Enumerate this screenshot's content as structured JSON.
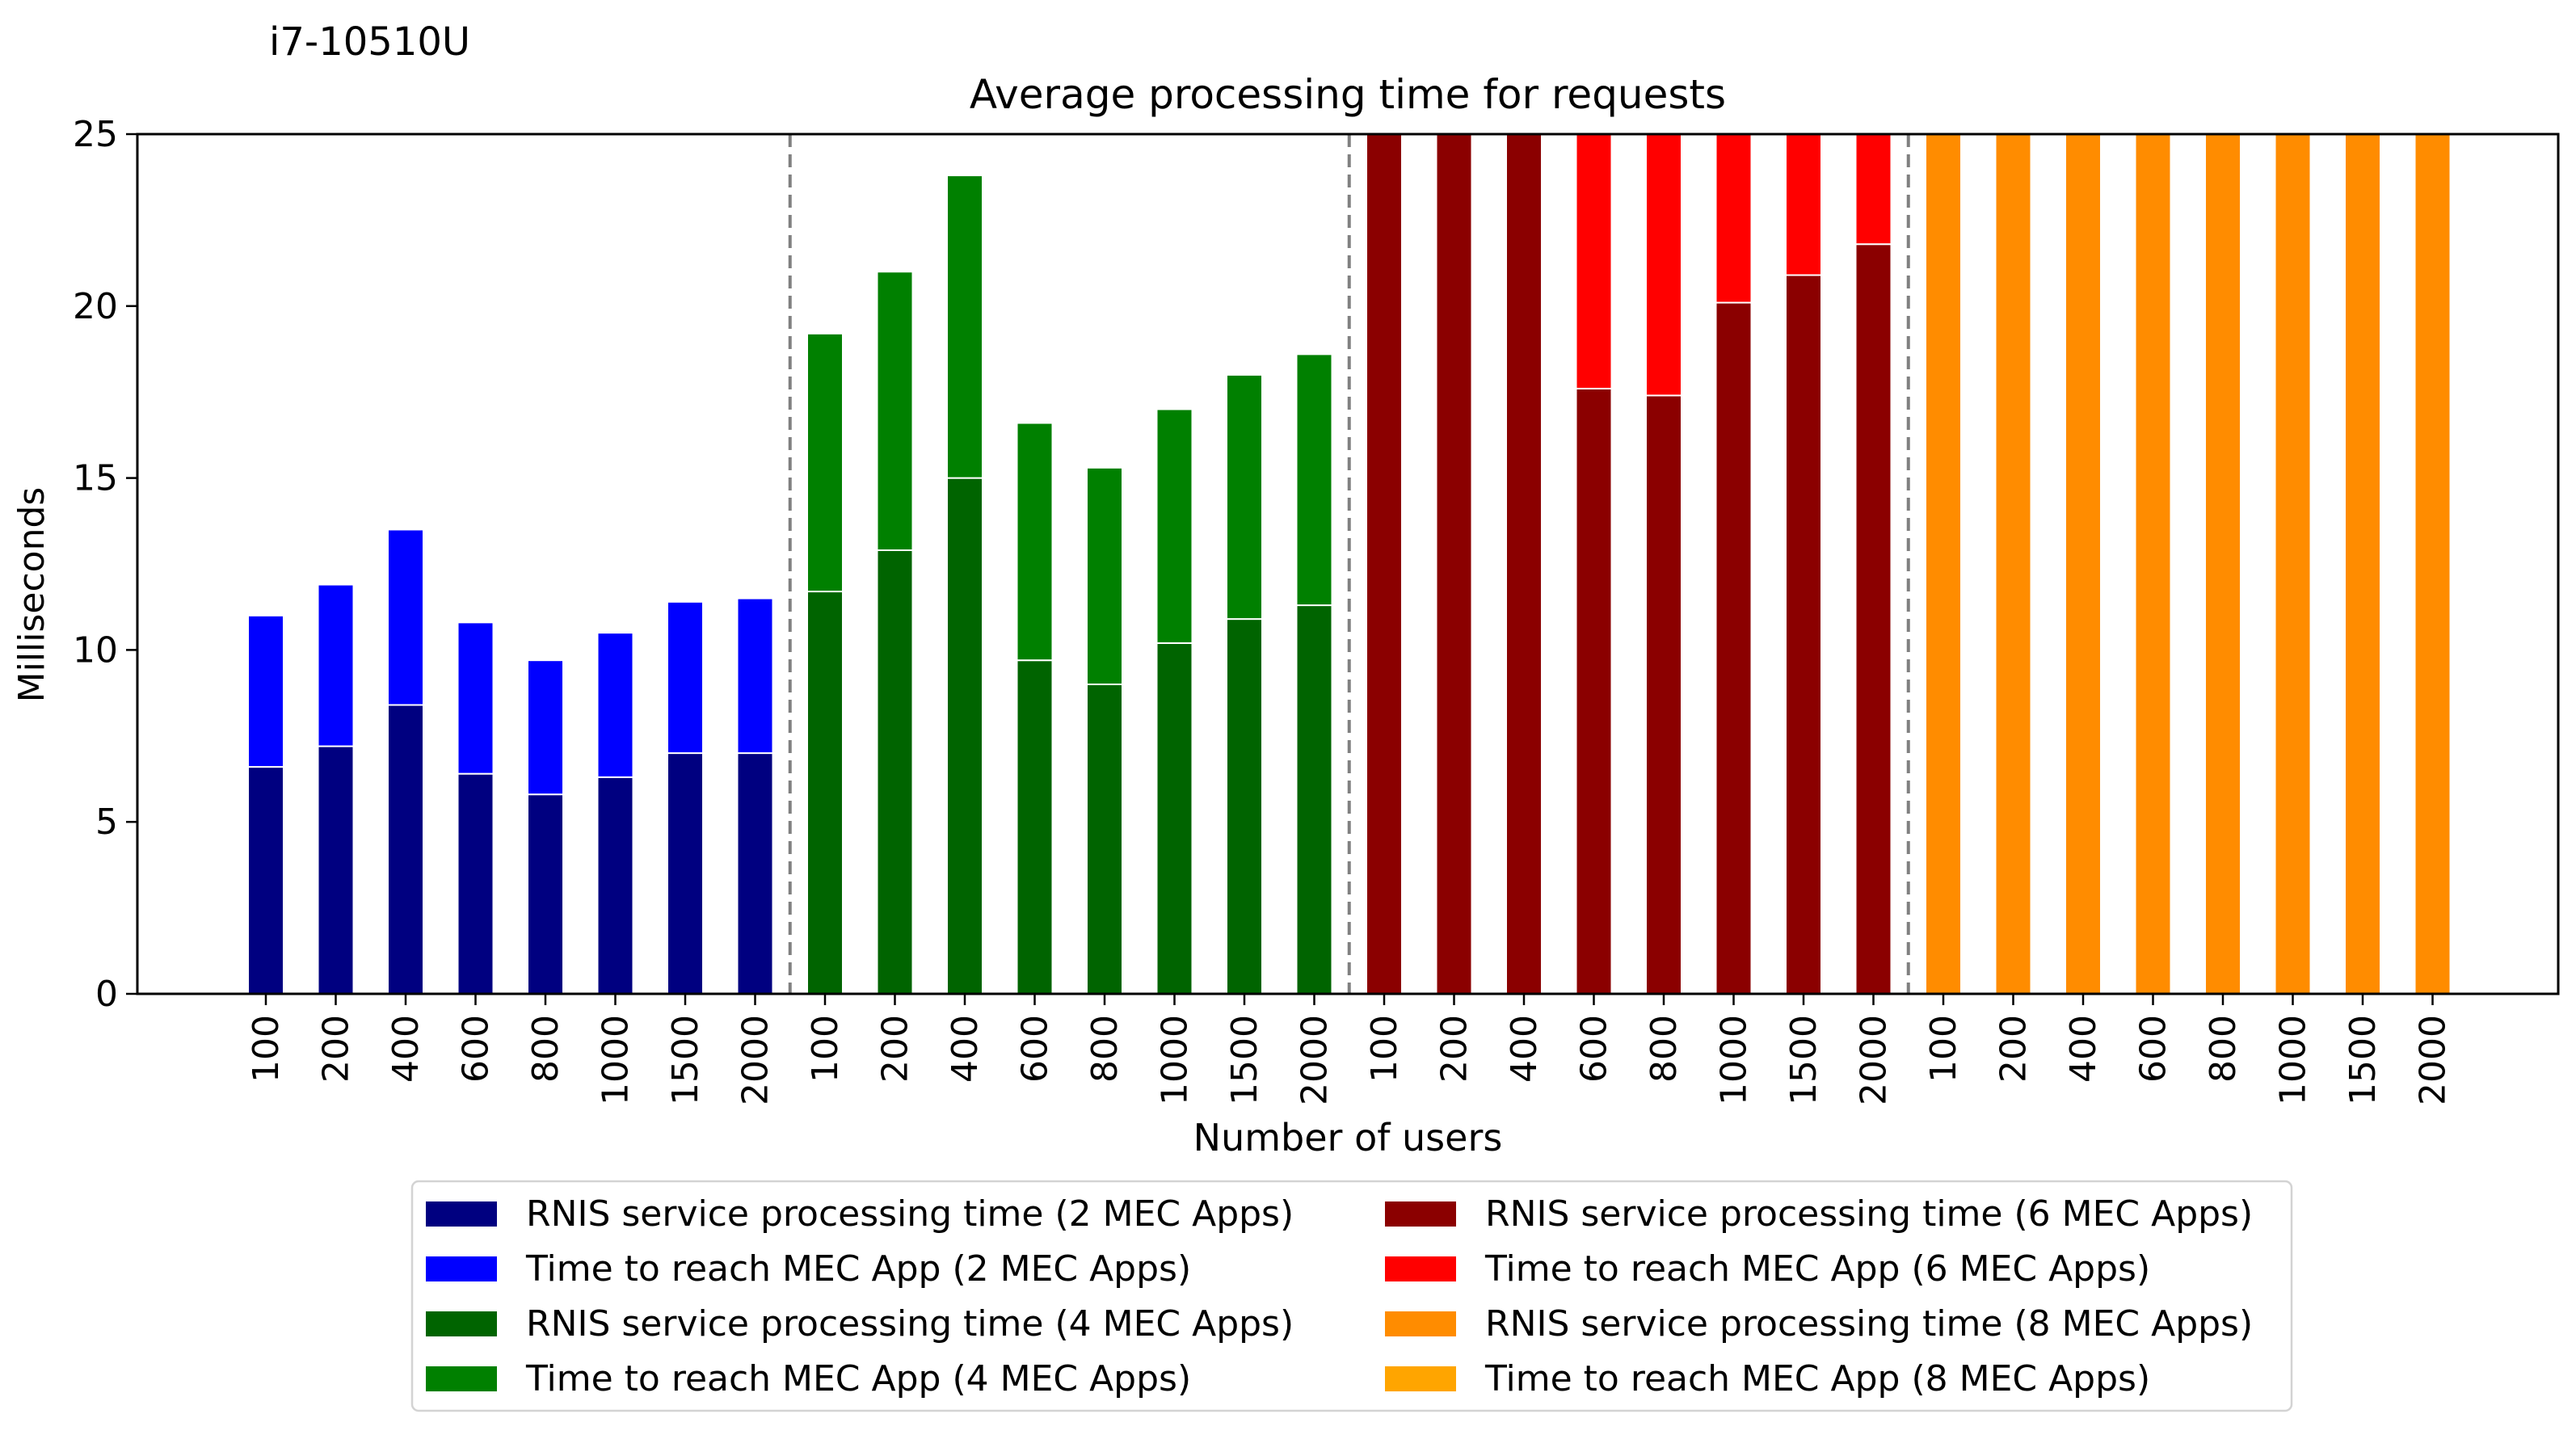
{
  "chart_data": {
    "type": "bar",
    "stacked": true,
    "corner_label": "i7-10510U",
    "title": "Average processing time for requests",
    "xlabel": "Number of users",
    "ylabel": "Milliseconds",
    "ylim": [
      0,
      25
    ],
    "yticks": [
      0,
      5,
      10,
      15,
      20,
      25
    ],
    "grid": false,
    "legend_position": "below",
    "categories": [
      "100",
      "200",
      "400",
      "600",
      "800",
      "1000",
      "1500",
      "2000"
    ],
    "groups": [
      {
        "processing": {
          "name": "RNIS service processing time (2 MEC Apps)",
          "color": "#000080",
          "values": [
            6.6,
            7.2,
            8.4,
            6.4,
            5.8,
            6.3,
            7.0,
            7.0
          ]
        },
        "reach": {
          "name": "Time to reach MEC App (2 MEC Apps)",
          "color": "#0000ff",
          "values": [
            4.4,
            4.7,
            5.1,
            4.4,
            3.9,
            4.2,
            4.4,
            4.5
          ]
        }
      },
      {
        "processing": {
          "name": "RNIS service processing time (4 MEC Apps)",
          "color": "#006400",
          "values": [
            11.7,
            12.9,
            15.0,
            9.7,
            9.0,
            10.2,
            10.9,
            11.3
          ]
        },
        "reach": {
          "name": "Time to reach MEC App (4 MEC Apps)",
          "color": "#008000",
          "values": [
            7.5,
            8.1,
            8.8,
            6.9,
            6.3,
            6.8,
            7.1,
            7.3
          ]
        }
      },
      {
        "processing": {
          "name": "RNIS service processing time (6 MEC Apps)",
          "color": "#8b0000",
          "values": [
            25.0,
            25.0,
            25.0,
            17.6,
            17.4,
            20.1,
            20.9,
            21.8
          ]
        },
        "reach": {
          "name": "Time to reach MEC App (6 MEC Apps)",
          "color": "#ff0000",
          "values": [
            0,
            0,
            0,
            7.4,
            7.6,
            4.9,
            4.1,
            3.2
          ]
        }
      },
      {
        "processing": {
          "name": "RNIS service processing time (8 MEC Apps)",
          "color": "#ff8c00",
          "values": [
            25.0,
            25.0,
            25.0,
            25.0,
            25.0,
            25.0,
            25.0,
            25.0
          ]
        },
        "reach": {
          "name": "Time to reach MEC App (8 MEC Apps)",
          "color": "#ffa500",
          "values": [
            0,
            0,
            0,
            0,
            0,
            0,
            0,
            0
          ]
        }
      }
    ]
  }
}
